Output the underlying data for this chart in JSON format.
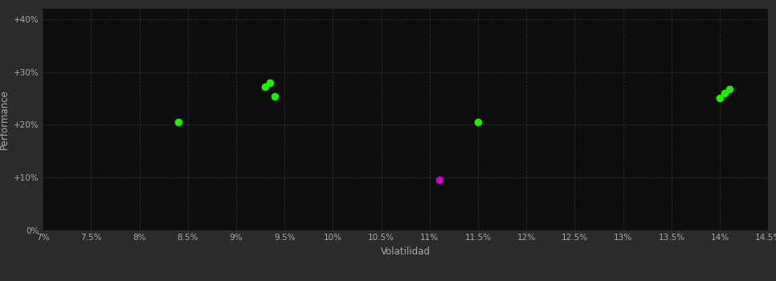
{
  "background_color": "#2b2b2b",
  "plot_bg_color": "#0d0d0d",
  "grid_color": "#3a3a3a",
  "text_color": "#aaaaaa",
  "xlabel": "Volatilidad",
  "ylabel": "Performance",
  "xlim": [
    0.07,
    0.145
  ],
  "ylim": [
    0.0,
    0.42
  ],
  "xtick_values": [
    0.07,
    0.075,
    0.08,
    0.085,
    0.09,
    0.095,
    0.1,
    0.105,
    0.11,
    0.115,
    0.12,
    0.125,
    0.13,
    0.135,
    0.14,
    0.145
  ],
  "ytick_values": [
    0.0,
    0.1,
    0.2,
    0.3,
    0.4
  ],
  "green_points": [
    [
      0.084,
      0.205
    ],
    [
      0.093,
      0.272
    ],
    [
      0.0935,
      0.28
    ],
    [
      0.094,
      0.253
    ],
    [
      0.115,
      0.205
    ],
    [
      0.14,
      0.25
    ],
    [
      0.1405,
      0.26
    ],
    [
      0.141,
      0.268
    ]
  ],
  "magenta_points": [
    [
      0.111,
      0.095
    ]
  ],
  "green_color": "#22ee00",
  "magenta_color": "#cc00cc",
  "point_size": 35,
  "tick_fontsize": 7.5,
  "label_fontsize": 8.5
}
